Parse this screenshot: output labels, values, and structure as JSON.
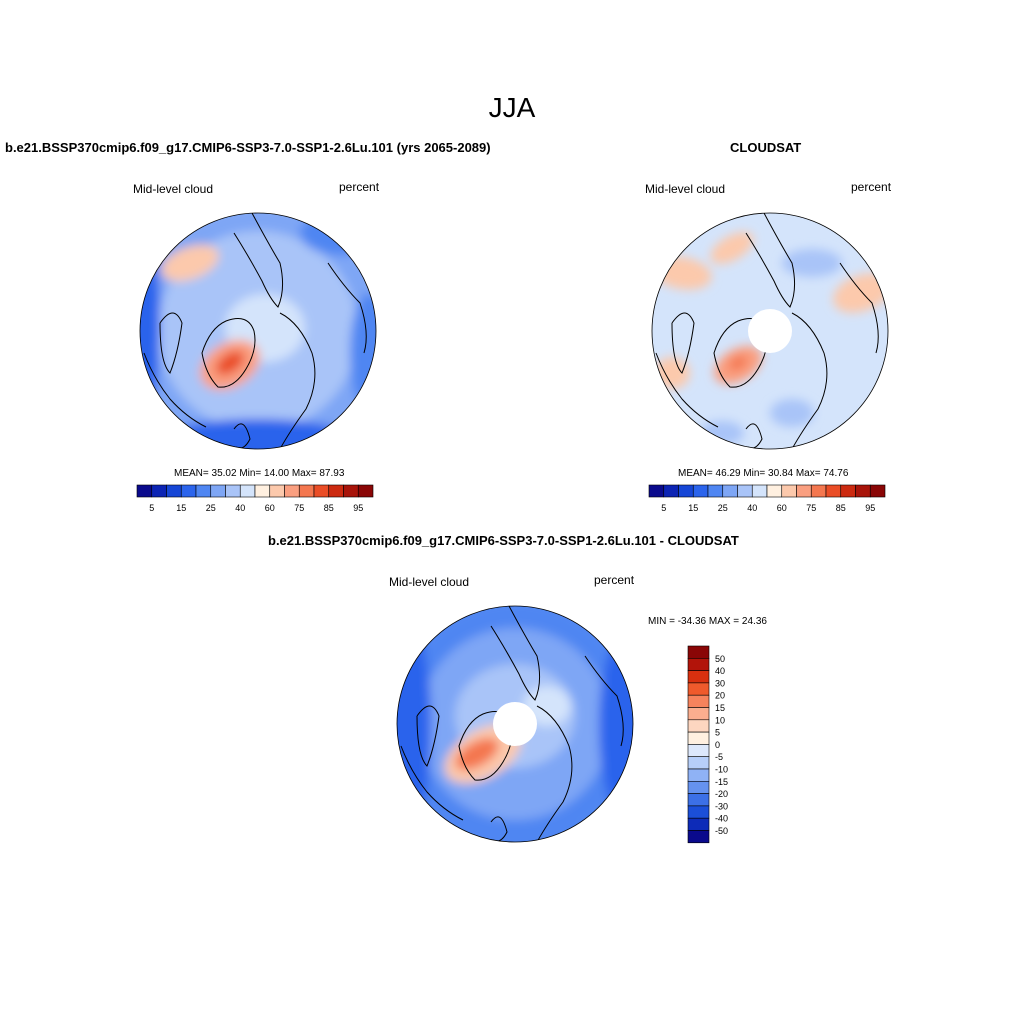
{
  "figure": {
    "title": "JJA"
  },
  "panels": [
    {
      "title": "b.e21.BSSP370cmip6.f09_g17.CMIP6-SSP3-7.0-SSP1-2.6Lu.101 (yrs 2065-2089)",
      "left_label": "Mid-level cloud",
      "right_label": "percent",
      "stats": "MEAN=  35.02  Min=  14.00  Max=  87.93",
      "polar_hole": false
    },
    {
      "title": "CLOUDSAT",
      "left_label": "Mid-level cloud",
      "right_label": "percent",
      "stats": "MEAN=  46.29  Min=  30.84  Max=  74.76",
      "polar_hole": true
    },
    {
      "title": "b.e21.BSSP370cmip6.f09_g17.CMIP6-SSP3-7.0-SSP1-2.6Lu.101 - CLOUDSAT",
      "left_label": "Mid-level cloud",
      "right_label": "percent",
      "stats": "MIN = -34.36 MAX =  24.36",
      "polar_hole": true
    }
  ],
  "colorbar_main": {
    "tick_labels": [
      "5",
      "15",
      "25",
      "40",
      "60",
      "75",
      "85",
      "95"
    ],
    "colors": [
      "#0a0a8c",
      "#0c24b4",
      "#1646d6",
      "#2b64ec",
      "#4f86f2",
      "#7ea6f5",
      "#a9c4f8",
      "#d4e4fb",
      "#fff0e0",
      "#fcc9ac",
      "#fa9f80",
      "#f4774f",
      "#ea4d26",
      "#cc2a10",
      "#a8140a",
      "#8a0606"
    ]
  },
  "colorbar_diff": {
    "tick_labels": [
      "50",
      "40",
      "30",
      "20",
      "15",
      "10",
      "5",
      "0",
      "-5",
      "-10",
      "-15",
      "-20",
      "-30",
      "-40",
      "-50"
    ],
    "colors": [
      "#8a0606",
      "#b2140a",
      "#d8300f",
      "#ef5a2c",
      "#f6835d",
      "#fbae8f",
      "#fdd6c0",
      "#fff0e0",
      "#dde8fb",
      "#b7cff9",
      "#8fb2f5",
      "#6592ef",
      "#3c70e6",
      "#1b4fd8",
      "#0d2bb8",
      "#0a0a8c"
    ]
  }
}
